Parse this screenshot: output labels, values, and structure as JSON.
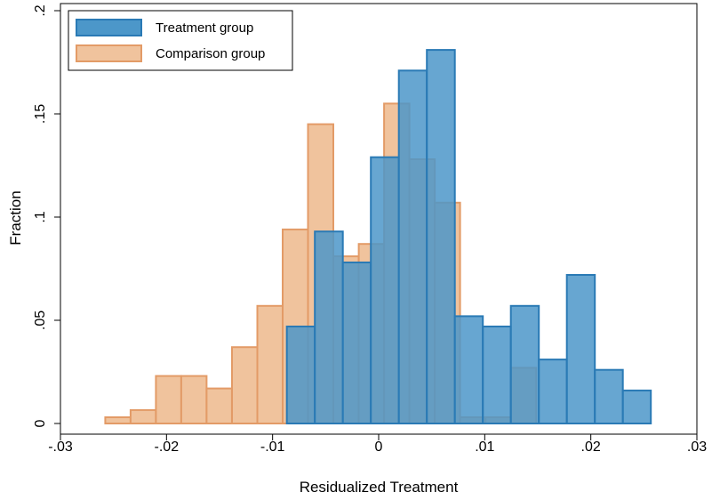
{
  "chart_data": {
    "type": "bar",
    "subtype": "overlaid-histogram",
    "xlabel": "Residualized Treatment",
    "ylabel": "Fraction",
    "xlim": [
      -0.03,
      0.03
    ],
    "ylim": [
      0,
      0.2
    ],
    "x_ticks": [
      {
        "value": -0.03,
        "label": "-.03"
      },
      {
        "value": -0.02,
        "label": "-.02"
      },
      {
        "value": -0.01,
        "label": "-.01"
      },
      {
        "value": 0,
        "label": "0"
      },
      {
        "value": 0.01,
        "label": ".01"
      },
      {
        "value": 0.02,
        "label": ".02"
      },
      {
        "value": 0.03,
        "label": ".03"
      }
    ],
    "y_ticks": [
      {
        "value": 0,
        "label": "0"
      },
      {
        "value": 0.05,
        "label": ".05"
      },
      {
        "value": 0.1,
        "label": ".1"
      },
      {
        "value": 0.15,
        "label": ".15"
      },
      {
        "value": 0.2,
        "label": ".2"
      }
    ],
    "grid": false,
    "legend_position": "top-left",
    "series": [
      {
        "name": "Comparison group",
        "fill": "#f0c39d",
        "stroke": "#e39b67",
        "bins": [
          {
            "x0": -0.02578,
            "x1": -0.02339,
            "y": 0.003
          },
          {
            "x0": -0.02339,
            "x1": -0.021,
            "y": 0.0065
          },
          {
            "x0": -0.021,
            "x1": -0.01861,
            "y": 0.023
          },
          {
            "x0": -0.01861,
            "x1": -0.01622,
            "y": 0.023
          },
          {
            "x0": -0.01622,
            "x1": -0.01383,
            "y": 0.017
          },
          {
            "x0": -0.01383,
            "x1": -0.01144,
            "y": 0.037
          },
          {
            "x0": -0.01144,
            "x1": -0.00905,
            "y": 0.057
          },
          {
            "x0": -0.00905,
            "x1": -0.00666,
            "y": 0.094
          },
          {
            "x0": -0.00666,
            "x1": -0.00427,
            "y": 0.145
          },
          {
            "x0": -0.00427,
            "x1": -0.00188,
            "y": 0.081
          },
          {
            "x0": -0.00188,
            "x1": 0.00051,
            "y": 0.087
          },
          {
            "x0": 0.00051,
            "x1": 0.0029,
            "y": 0.155
          },
          {
            "x0": 0.0029,
            "x1": 0.00529,
            "y": 0.128
          },
          {
            "x0": 0.00529,
            "x1": 0.00768,
            "y": 0.107
          },
          {
            "x0": 0.00768,
            "x1": 0.01007,
            "y": 0.003
          },
          {
            "x0": 0.01007,
            "x1": 0.01246,
            "y": 0.003
          },
          {
            "x0": 0.01246,
            "x1": 0.01485,
            "y": 0.027
          }
        ]
      },
      {
        "name": "Treatment group",
        "fill": "#4c97c9",
        "stroke": "#2a7ab5",
        "bins": [
          {
            "x0": -0.00866,
            "x1": -0.00602,
            "y": 0.047
          },
          {
            "x0": -0.00602,
            "x1": -0.00338,
            "y": 0.093
          },
          {
            "x0": -0.00338,
            "x1": -0.00074,
            "y": 0.078
          },
          {
            "x0": -0.00074,
            "x1": 0.0019,
            "y": 0.129
          },
          {
            "x0": 0.0019,
            "x1": 0.00454,
            "y": 0.171
          },
          {
            "x0": 0.00454,
            "x1": 0.00718,
            "y": 0.181
          },
          {
            "x0": 0.00718,
            "x1": 0.00982,
            "y": 0.052
          },
          {
            "x0": 0.00982,
            "x1": 0.01246,
            "y": 0.047
          },
          {
            "x0": 0.01246,
            "x1": 0.0151,
            "y": 0.057
          },
          {
            "x0": 0.0151,
            "x1": 0.01774,
            "y": 0.031
          },
          {
            "x0": 0.01774,
            "x1": 0.02038,
            "y": 0.072
          },
          {
            "x0": 0.02038,
            "x1": 0.02302,
            "y": 0.026
          },
          {
            "x0": 0.02302,
            "x1": 0.02566,
            "y": 0.016
          }
        ]
      }
    ],
    "legend": [
      {
        "label": "Treatment group",
        "series_index": 1
      },
      {
        "label": "Comparison group",
        "series_index": 0
      }
    ]
  }
}
